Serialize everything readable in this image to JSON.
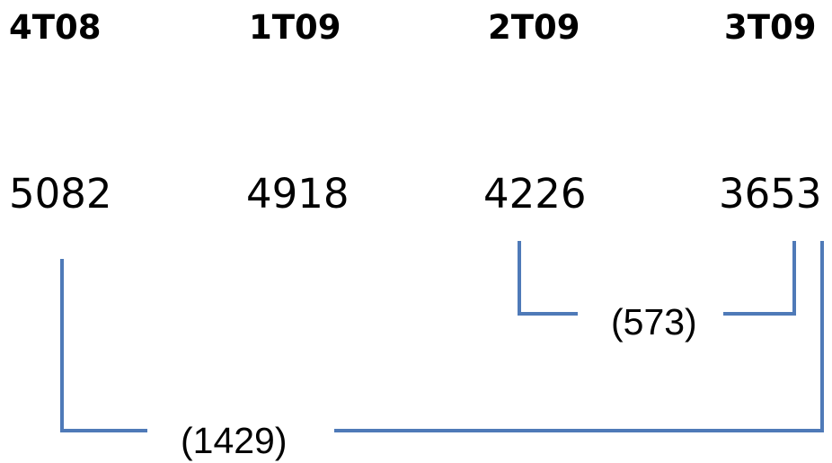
{
  "periods": [
    {
      "label": "4T08",
      "value": "5082"
    },
    {
      "label": "1T09",
      "value": "4918"
    },
    {
      "label": "2T09",
      "value": "4226"
    },
    {
      "label": "3T09",
      "value": "3653"
    }
  ],
  "differences": {
    "short": "(573)",
    "long": "(1429)"
  },
  "colors": {
    "text": "#000000",
    "bracket": "#4f7ab8",
    "background": "#ffffff"
  }
}
